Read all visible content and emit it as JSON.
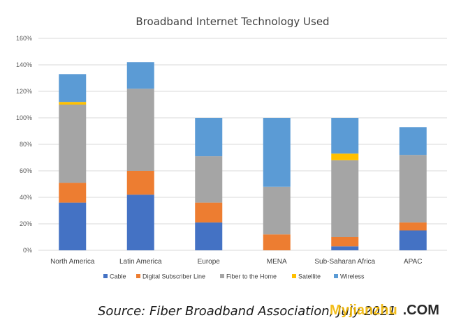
{
  "source": "Source: Fiber Broadband Association, July 2021",
  "watermark": {
    "name": "Myjianzhu",
    "suffix": ".COM"
  },
  "chart_data": {
    "type": "bar",
    "stacked": true,
    "title": "Broadband Internet Technology Used",
    "categories": [
      "North America",
      "Latin America",
      "Europe",
      "MENA",
      "Sub-Saharan Africa",
      "APAC"
    ],
    "ylim": [
      0,
      160
    ],
    "yticks": [
      0,
      20,
      40,
      60,
      80,
      100,
      120,
      140,
      160
    ],
    "ytick_labels": [
      "0%",
      "20%",
      "40%",
      "60%",
      "80%",
      "100%",
      "120%",
      "140%",
      "160%"
    ],
    "grid": true,
    "legend_position": "bottom",
    "series": [
      {
        "name": "Cable",
        "color": "#4472C4",
        "values": [
          36,
          42,
          21,
          0,
          3,
          15
        ]
      },
      {
        "name": "Digital Subscriber Line",
        "color": "#ED7D31",
        "values": [
          15,
          18,
          15,
          12,
          7,
          6
        ]
      },
      {
        "name": "Fiber to the Home",
        "color": "#A5A5A5",
        "values": [
          59,
          62,
          35,
          36,
          58,
          51
        ]
      },
      {
        "name": "Satellite",
        "color": "#FFC000",
        "values": [
          2,
          0,
          0,
          0,
          5,
          0
        ]
      },
      {
        "name": "Wireless",
        "color": "#5B9BD5",
        "values": [
          21,
          20,
          29,
          52,
          27,
          21
        ]
      }
    ]
  }
}
